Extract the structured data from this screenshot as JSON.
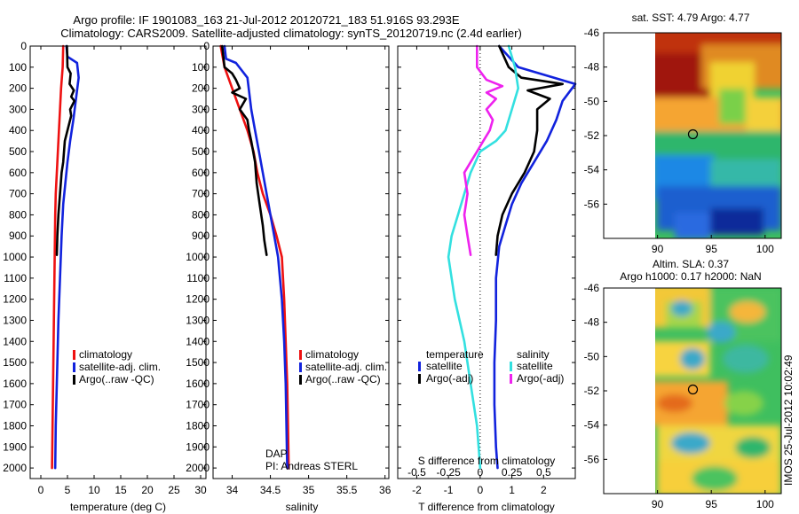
{
  "title": {
    "line1": "Argo profile: IF 1901083_163 21-Jul-2012 20120721_183 51.916S 93.293E",
    "line2": "Climatology: CARS2009. Satellite-adjusted climatology: synTS_20120719.nc (2.4d earlier)"
  },
  "colors": {
    "red": "#ee1111",
    "blue": "#1122dd",
    "black": "#000000",
    "cyan": "#33e0e0",
    "magenta": "#ee22ee"
  },
  "side_text": "IMOS 25-Jul-2012 10:02:49",
  "chart_data": [
    {
      "id": "temperature",
      "type": "line",
      "xlabel": "temperature (deg C)",
      "ylabel": "",
      "xlim": [
        -2,
        31
      ],
      "ylim": [
        2050,
        0
      ],
      "xticks": [
        0,
        5,
        10,
        15,
        20,
        25,
        30
      ],
      "yticks": [
        0,
        100,
        200,
        300,
        400,
        500,
        600,
        700,
        800,
        900,
        1000,
        1100,
        1200,
        1300,
        1400,
        1500,
        1600,
        1700,
        1800,
        1900,
        2000
      ],
      "legend": [
        "climatology",
        "satellite-adj. clim.",
        "Argo(..raw -QC)"
      ],
      "series": [
        {
          "name": "climatology",
          "color": "red",
          "x": [
            4.2,
            4.1,
            3.8,
            3.6,
            3.4,
            3.2,
            3.0,
            2.8,
            2.7,
            2.6,
            2.5,
            2.4,
            2.3,
            2.2,
            2.1
          ],
          "y": [
            0,
            100,
            200,
            300,
            400,
            500,
            600,
            700,
            800,
            1000,
            1200,
            1400,
            1600,
            1800,
            2000
          ]
        },
        {
          "name": "satellite-adj. clim.",
          "color": "blue",
          "x": [
            4.8,
            5.0,
            6.8,
            7.1,
            6.6,
            6.1,
            5.5,
            5.0,
            4.6,
            4.2,
            3.9,
            3.6,
            3.3,
            3.0,
            2.8,
            2.7
          ],
          "y": [
            0,
            50,
            80,
            150,
            250,
            350,
            450,
            550,
            650,
            750,
            900,
            1100,
            1300,
            1600,
            1800,
            2000
          ]
        },
        {
          "name": "Argo(..raw -QC)",
          "color": "black",
          "x": [
            4.9,
            5.0,
            5.6,
            5.4,
            6.2,
            5.7,
            6.3,
            5.5,
            5.7,
            5.0,
            4.5,
            4.2,
            3.9,
            3.6,
            3.3,
            3.1,
            3.0
          ],
          "y": [
            0,
            100,
            130,
            180,
            210,
            240,
            260,
            300,
            330,
            400,
            450,
            550,
            600,
            700,
            800,
            900,
            990
          ]
        }
      ]
    },
    {
      "id": "salinity",
      "type": "line",
      "xlabel": "salinity",
      "ylabel": "",
      "xlim": [
        33.75,
        36.05
      ],
      "ylim": [
        2050,
        0
      ],
      "xticks": [
        34,
        34.5,
        35,
        35.5,
        36
      ],
      "yticks": [
        0,
        100,
        200,
        300,
        400,
        500,
        600,
        700,
        800,
        900,
        1000,
        1100,
        1200,
        1300,
        1400,
        1500,
        1600,
        1700,
        1800,
        1900,
        2000
      ],
      "legend": [
        "climatology",
        "satellite-adj. clim.",
        "Argo(..raw -QC)"
      ],
      "annotations": [
        "DAP",
        "PI: Andreas STERL"
      ],
      "series": [
        {
          "name": "climatology",
          "color": "red",
          "x": [
            33.85,
            33.9,
            34.0,
            34.1,
            34.2,
            34.28,
            34.33,
            34.4,
            34.5,
            34.58,
            34.65,
            34.68,
            34.7,
            34.72,
            34.73,
            34.74
          ],
          "y": [
            0,
            100,
            200,
            300,
            400,
            500,
            600,
            700,
            800,
            900,
            1000,
            1200,
            1400,
            1600,
            1800,
            2000
          ]
        },
        {
          "name": "satellite-adj. clim.",
          "color": "blue",
          "x": [
            33.9,
            33.92,
            34.05,
            34.2,
            34.25,
            34.3,
            34.35,
            34.4,
            34.45,
            34.5,
            34.55,
            34.6,
            34.65,
            34.68,
            34.7,
            34.72
          ],
          "y": [
            0,
            60,
            80,
            150,
            300,
            400,
            500,
            600,
            700,
            800,
            900,
            1000,
            1200,
            1400,
            1600,
            2000
          ]
        },
        {
          "name": "Argo(..raw -QC)",
          "color": "black",
          "x": [
            33.87,
            33.9,
            34.0,
            34.05,
            34.1,
            34.0,
            34.18,
            34.1,
            34.2,
            34.22,
            34.25,
            34.3,
            34.32,
            34.36,
            34.4,
            34.42,
            34.45
          ],
          "y": [
            0,
            100,
            130,
            160,
            200,
            220,
            250,
            300,
            350,
            400,
            450,
            550,
            650,
            750,
            850,
            920,
            990
          ]
        }
      ]
    },
    {
      "id": "difference",
      "type": "line",
      "xlabel": "T difference from climatology",
      "xlabel_top": "S difference from climatology",
      "ylabel": "",
      "xlim": [
        -2.6,
        3.0
      ],
      "ylim": [
        2050,
        0
      ],
      "xticks": [
        -2,
        -1,
        0,
        1,
        2
      ],
      "xticks_top": [
        "-0.5",
        "-0.25",
        "0",
        "0.25",
        "0.5"
      ],
      "xticks_top_pos": [
        -2,
        -1,
        0,
        1,
        2
      ],
      "yticks": [
        0,
        100,
        200,
        300,
        400,
        500,
        600,
        700,
        800,
        900,
        1000,
        1100,
        1200,
        1300,
        1400,
        1500,
        1600,
        1700,
        1800,
        1900,
        2000
      ],
      "legend_groups": [
        {
          "title": "temperature",
          "items": [
            "satellite",
            "Argo(-adj)"
          ]
        },
        {
          "title": "salinity",
          "items": [
            "satellite",
            "Argo(-adj)"
          ]
        }
      ],
      "series": [
        {
          "name": "temperature satellite",
          "color": "blue",
          "x": [
            0.6,
            1.2,
            3.0,
            2.6,
            2.4,
            2.1,
            1.7,
            1.3,
            1.0,
            0.8,
            0.6,
            0.5,
            0.5,
            0.45,
            0.45,
            0.5,
            0.55
          ],
          "y": [
            0,
            100,
            180,
            260,
            350,
            450,
            550,
            650,
            750,
            850,
            950,
            1100,
            1300,
            1500,
            1700,
            1900,
            2000
          ]
        },
        {
          "name": "temperature Argo(-adj)",
          "color": "black",
          "x": [
            0.6,
            0.9,
            1.3,
            2.6,
            1.5,
            2.2,
            1.8,
            1.8,
            1.7,
            1.4,
            1.0,
            0.7,
            0.55,
            0.5
          ],
          "y": [
            0,
            100,
            150,
            180,
            210,
            250,
            300,
            400,
            500,
            600,
            700,
            800,
            900,
            990
          ]
        },
        {
          "name": "salinity satellite",
          "color": "cyan",
          "x": [
            0.9,
            1.1,
            1.2,
            1.0,
            0.8,
            0.5,
            0.0,
            -0.3,
            -0.5,
            -0.7,
            -0.9,
            -1.0,
            -0.8,
            -0.5,
            -0.3,
            -0.1,
            0.0
          ],
          "y": [
            0,
            100,
            200,
            300,
            400,
            450,
            500,
            600,
            700,
            800,
            900,
            1000,
            1200,
            1400,
            1600,
            1800,
            2000
          ]
        },
        {
          "name": "salinity Argo(-adj)",
          "color": "magenta",
          "x": [
            -0.1,
            -0.1,
            0.2,
            0.7,
            0.2,
            0.5,
            0.2,
            0.4,
            0.3,
            0.1,
            -0.1,
            -0.3,
            -0.5,
            -0.4,
            -0.5,
            -0.4,
            -0.3
          ],
          "y": [
            0,
            100,
            160,
            190,
            220,
            250,
            300,
            350,
            400,
            450,
            500,
            550,
            600,
            700,
            800,
            900,
            990
          ]
        }
      ]
    },
    {
      "id": "sst-map",
      "type": "heatmap",
      "title": "sat. SST: 4.79 Argo: 4.77",
      "xlim": [
        85,
        101.5
      ],
      "ylim": [
        -58,
        -46
      ],
      "xticks": [
        90,
        95,
        100
      ],
      "yticks": [
        -46,
        -48,
        -50,
        -52,
        -54,
        -56
      ],
      "argo_position": [
        93.29,
        -51.92
      ]
    },
    {
      "id": "sla-map",
      "type": "heatmap",
      "title": "Altim. SLA: 0.37",
      "title2": "Argo h1000: 0.17 h2000: NaN",
      "xlim": [
        85,
        101.5
      ],
      "ylim": [
        -58,
        -46
      ],
      "xticks": [
        90,
        95,
        100
      ],
      "yticks": [
        -46,
        -48,
        -50,
        -52,
        -54,
        -56
      ],
      "argo_position": [
        93.29,
        -51.92
      ]
    }
  ]
}
